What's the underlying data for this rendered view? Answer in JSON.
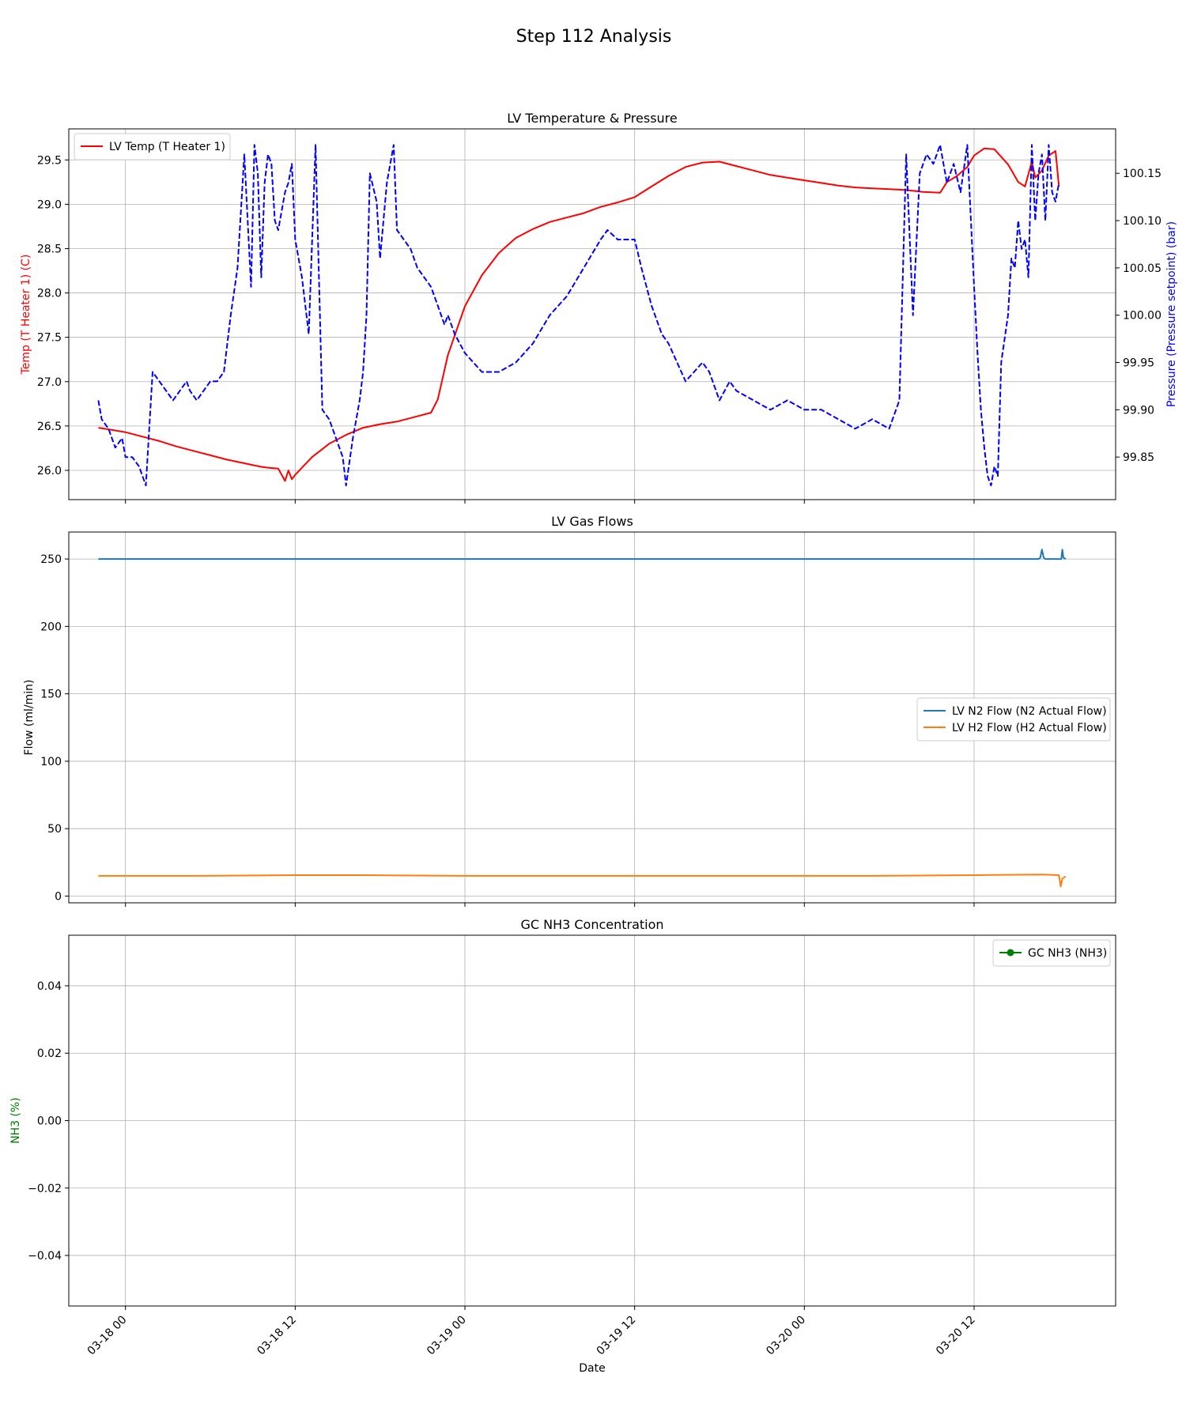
{
  "figure_title": "Step 112 Analysis",
  "colors": {
    "temp": "#ff0000",
    "pressure": "#0000ff",
    "n2": "#1f77b4",
    "h2": "#ff7f0e",
    "nh3": "#008000"
  },
  "chart_data": [
    {
      "type": "line",
      "title": "LV Temperature & Pressure",
      "xlabel": "",
      "ylabel": "Temp (T Heater 1) (C)",
      "ylabel_right": "Pressure (Pressure setpoint) (bar)",
      "x_unit": "days after 2025-03-18 00:00",
      "xlim": [
        -0.167,
        2.917
      ],
      "x_ticks": [
        0,
        0.5,
        1,
        1.5,
        2,
        2.5
      ],
      "x_tick_labels": [
        "03-18 00",
        "03-18 12",
        "03-19 00",
        "03-19 12",
        "03-20 00",
        "03-20 12"
      ],
      "ylim": [
        25.67,
        29.85
      ],
      "y_ticks": [
        26.0,
        26.5,
        27.0,
        27.5,
        28.0,
        28.5,
        29.0,
        29.5
      ],
      "y_tick_labels": [
        "26.0",
        "26.5",
        "27.0",
        "27.5",
        "28.0",
        "28.5",
        "29.0",
        "29.5"
      ],
      "ylim_right": [
        99.805,
        100.197
      ],
      "y_ticks_right": [
        99.85,
        99.9,
        99.95,
        100.0,
        100.05,
        100.1,
        100.15
      ],
      "y_tick_labels_right": [
        "99.85",
        "99.90",
        "99.95",
        "100.00",
        "100.05",
        "100.10",
        "100.15"
      ],
      "grid": true,
      "legend": {
        "placement": "upper-left",
        "entries": [
          "LV Temp (T Heater 1)"
        ]
      },
      "series": [
        {
          "name": "LV Temp (T Heater 1)",
          "axis": "left",
          "style": "solid",
          "x": [
            -0.08,
            -0.03,
            0.0,
            0.05,
            0.1,
            0.15,
            0.2,
            0.25,
            0.3,
            0.35,
            0.4,
            0.42,
            0.45,
            0.47,
            0.48,
            0.49,
            0.5,
            0.55,
            0.6,
            0.65,
            0.7,
            0.75,
            0.8,
            0.85,
            0.9,
            0.92,
            0.95,
            1.0,
            1.05,
            1.1,
            1.15,
            1.2,
            1.25,
            1.3,
            1.35,
            1.4,
            1.45,
            1.5,
            1.55,
            1.6,
            1.65,
            1.7,
            1.75,
            1.8,
            1.85,
            1.9,
            1.95,
            2.0,
            2.05,
            2.1,
            2.15,
            2.2,
            2.25,
            2.3,
            2.35,
            2.4,
            2.42,
            2.45,
            2.48,
            2.5,
            2.53,
            2.56,
            2.6,
            2.63,
            2.65,
            2.67,
            2.68,
            2.7,
            2.72,
            2.74,
            2.75
          ],
          "values": [
            26.48,
            26.45,
            26.43,
            26.38,
            26.33,
            26.27,
            26.22,
            26.17,
            26.12,
            26.08,
            26.04,
            26.03,
            26.02,
            25.88,
            26.0,
            25.9,
            25.95,
            26.15,
            26.3,
            26.4,
            26.48,
            26.52,
            26.55,
            26.6,
            26.65,
            26.8,
            27.3,
            27.85,
            28.2,
            28.45,
            28.62,
            28.72,
            28.8,
            28.85,
            28.9,
            28.97,
            29.02,
            29.08,
            29.2,
            29.32,
            29.42,
            29.47,
            29.48,
            29.43,
            29.38,
            29.33,
            29.3,
            29.27,
            29.24,
            29.21,
            29.19,
            29.18,
            29.17,
            29.16,
            29.14,
            29.13,
            29.25,
            29.32,
            29.42,
            29.55,
            29.63,
            29.62,
            29.45,
            29.25,
            29.2,
            29.48,
            29.3,
            29.38,
            29.55,
            29.6,
            29.2
          ]
        },
        {
          "name": "",
          "axis": "right",
          "style": "dashed",
          "x": [
            -0.08,
            -0.07,
            -0.05,
            -0.03,
            -0.01,
            0.0,
            0.02,
            0.04,
            0.06,
            0.08,
            0.1,
            0.1,
            0.12,
            0.14,
            0.16,
            0.18,
            0.19,
            0.21,
            0.23,
            0.25,
            0.27,
            0.29,
            0.31,
            0.33,
            0.35,
            0.37,
            0.38,
            0.39,
            0.4,
            0.41,
            0.42,
            0.43,
            0.44,
            0.45,
            0.46,
            0.47,
            0.48,
            0.49,
            0.5,
            0.52,
            0.54,
            0.56,
            0.58,
            0.6,
            0.62,
            0.64,
            0.65,
            0.67,
            0.69,
            0.7,
            0.71,
            0.72,
            0.74,
            0.75,
            0.77,
            0.79,
            0.8,
            0.82,
            0.84,
            0.86,
            0.88,
            0.9,
            0.92,
            0.94,
            0.95,
            0.97,
            1.0,
            1.05,
            1.1,
            1.15,
            1.2,
            1.25,
            1.3,
            1.35,
            1.4,
            1.42,
            1.45,
            1.47,
            1.5,
            1.52,
            1.55,
            1.58,
            1.6,
            1.65,
            1.7,
            1.72,
            1.75,
            1.78,
            1.8,
            1.85,
            1.9,
            1.95,
            2.0,
            2.05,
            2.1,
            2.15,
            2.2,
            2.25,
            2.28,
            2.3,
            2.32,
            2.34,
            2.36,
            2.38,
            2.4,
            2.42,
            2.44,
            2.46,
            2.48,
            2.5,
            2.51,
            2.52,
            2.53,
            2.54,
            2.55,
            2.56,
            2.57,
            2.58,
            2.6,
            2.61,
            2.62,
            2.63,
            2.64,
            2.65,
            2.66,
            2.67,
            2.68,
            2.69,
            2.7,
            2.71,
            2.72,
            2.73,
            2.74,
            2.75
          ],
          "values": [
            99.91,
            99.89,
            99.88,
            99.86,
            99.87,
            99.85,
            99.85,
            99.84,
            99.82,
            99.94,
            99.93,
            99.93,
            99.92,
            99.91,
            99.92,
            99.93,
            99.92,
            99.91,
            99.92,
            99.93,
            99.93,
            99.94,
            100.0,
            100.05,
            100.17,
            100.03,
            100.18,
            100.15,
            100.04,
            100.14,
            100.17,
            100.16,
            100.1,
            100.09,
            100.11,
            100.13,
            100.14,
            100.16,
            100.08,
            100.04,
            99.98,
            100.18,
            99.9,
            99.89,
            99.87,
            99.85,
            99.82,
            99.87,
            99.91,
            99.94,
            100.0,
            100.15,
            100.12,
            100.06,
            100.14,
            100.18,
            100.09,
            100.08,
            100.07,
            100.05,
            100.04,
            100.03,
            100.01,
            99.99,
            100.0,
            99.98,
            99.96,
            99.94,
            99.94,
            99.95,
            99.97,
            100.0,
            100.02,
            100.05,
            100.08,
            100.09,
            100.08,
            100.08,
            100.08,
            100.05,
            100.01,
            99.98,
            99.97,
            99.93,
            99.95,
            99.94,
            99.91,
            99.93,
            99.92,
            99.91,
            99.9,
            99.91,
            99.9,
            99.9,
            99.89,
            99.88,
            99.89,
            99.88,
            99.91,
            100.17,
            100.0,
            100.15,
            100.17,
            100.16,
            100.18,
            100.14,
            100.16,
            100.13,
            100.18,
            100.03,
            99.96,
            99.9,
            99.86,
            99.83,
            99.82,
            99.84,
            99.83,
            99.95,
            100.0,
            100.06,
            100.05,
            100.1,
            100.07,
            100.08,
            100.04,
            100.18,
            100.1,
            100.15,
            100.17,
            100.1,
            100.18,
            100.13,
            100.12,
            100.14
          ]
        }
      ]
    },
    {
      "type": "line",
      "title": "LV Gas Flows",
      "xlabel": "",
      "ylabel": "Flow (ml/min)",
      "x_unit": "days after 2025-03-18 00:00",
      "xlim": [
        -0.167,
        2.917
      ],
      "x_ticks": [
        0,
        0.5,
        1,
        1.5,
        2,
        2.5
      ],
      "ylim": [
        -5,
        270
      ],
      "y_ticks": [
        0,
        50,
        100,
        150,
        200,
        250
      ],
      "y_tick_labels": [
        "0",
        "50",
        "100",
        "150",
        "200",
        "250"
      ],
      "grid": true,
      "legend": {
        "placement": "center-right",
        "entries": [
          "LV N2 Flow (N2 Actual Flow)",
          "LV H2 Flow (H2 Actual Flow)"
        ]
      },
      "series": [
        {
          "name": "LV N2 Flow (N2 Actual Flow)",
          "style": "solid",
          "x": [
            -0.08,
            2.6,
            2.69,
            2.695,
            2.7,
            2.705,
            2.71,
            2.74,
            2.757,
            2.76,
            2.763,
            2.77
          ],
          "values": [
            250,
            250,
            250,
            251,
            257,
            251,
            250,
            250,
            250,
            257,
            251,
            250
          ]
        },
        {
          "name": "LV H2 Flow (H2 Actual Flow)",
          "style": "solid",
          "x": [
            -0.08,
            0.2,
            0.5,
            0.7,
            1.0,
            1.3,
            1.6,
            1.9,
            2.2,
            2.5,
            2.7,
            2.75,
            2.755,
            2.76,
            2.77
          ],
          "values": [
            15,
            15,
            15.5,
            15.5,
            15,
            15,
            15,
            15,
            15,
            15.5,
            16,
            15.5,
            7,
            13,
            14.5
          ]
        }
      ]
    },
    {
      "type": "line",
      "title": "GC NH3 Concentration",
      "xlabel": "Date",
      "ylabel": "NH3 (%)",
      "x_unit": "days after 2025-03-18 00:00",
      "xlim": [
        -0.167,
        2.917
      ],
      "x_ticks": [
        0,
        0.5,
        1,
        1.5,
        2,
        2.5
      ],
      "x_tick_labels": [
        "03-18 00",
        "03-18 12",
        "03-19 00",
        "03-19 12",
        "03-20 00",
        "03-20 12"
      ],
      "ylim": [
        -0.055,
        0.055
      ],
      "y_ticks": [
        -0.04,
        -0.02,
        0.0,
        0.02,
        0.04
      ],
      "y_tick_labels": [
        "−0.04",
        "−0.02",
        "0.00",
        "0.02",
        "0.04"
      ],
      "grid": true,
      "legend": {
        "placement": "upper-right",
        "entries": [
          "GC NH3 (NH3)"
        ]
      },
      "series": [
        {
          "name": "GC NH3 (NH3)",
          "style": "solid-marker",
          "x": [],
          "values": []
        }
      ]
    }
  ]
}
